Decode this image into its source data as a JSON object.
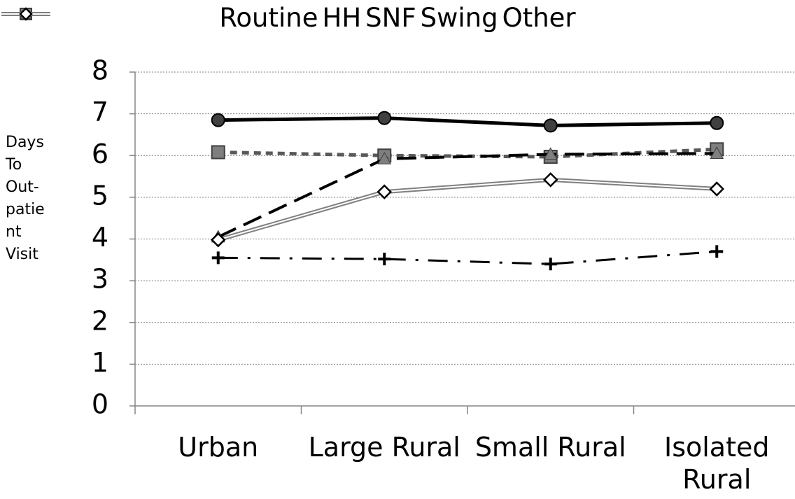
{
  "chart_data": {
    "type": "line",
    "y_label": "Days To Out-patient Visit",
    "categories": [
      "Urban",
      "Large Rural",
      "Small Rural",
      "Isolated Rural"
    ],
    "series": [
      {
        "name": "Routine",
        "color": "#000000",
        "values": [
          6.85,
          6.9,
          6.72,
          6.78
        ]
      },
      {
        "name": "HH",
        "color": "#595959",
        "values": [
          6.08,
          6.0,
          5.97,
          6.15
        ]
      },
      {
        "name": "SNF",
        "color": "#000000",
        "values": [
          4.05,
          5.92,
          6.03,
          6.05
        ]
      },
      {
        "name": "Swing",
        "color": "#000000",
        "values": [
          3.55,
          3.52,
          3.4,
          3.7
        ]
      },
      {
        "name": "Other",
        "color": "#808080",
        "values": [
          3.98,
          5.13,
          5.42,
          5.2
        ]
      }
    ],
    "ylim": [
      0,
      8
    ],
    "yticks": [
      0,
      1,
      2,
      3,
      4,
      5,
      6,
      7,
      8
    ],
    "grid": true
  }
}
